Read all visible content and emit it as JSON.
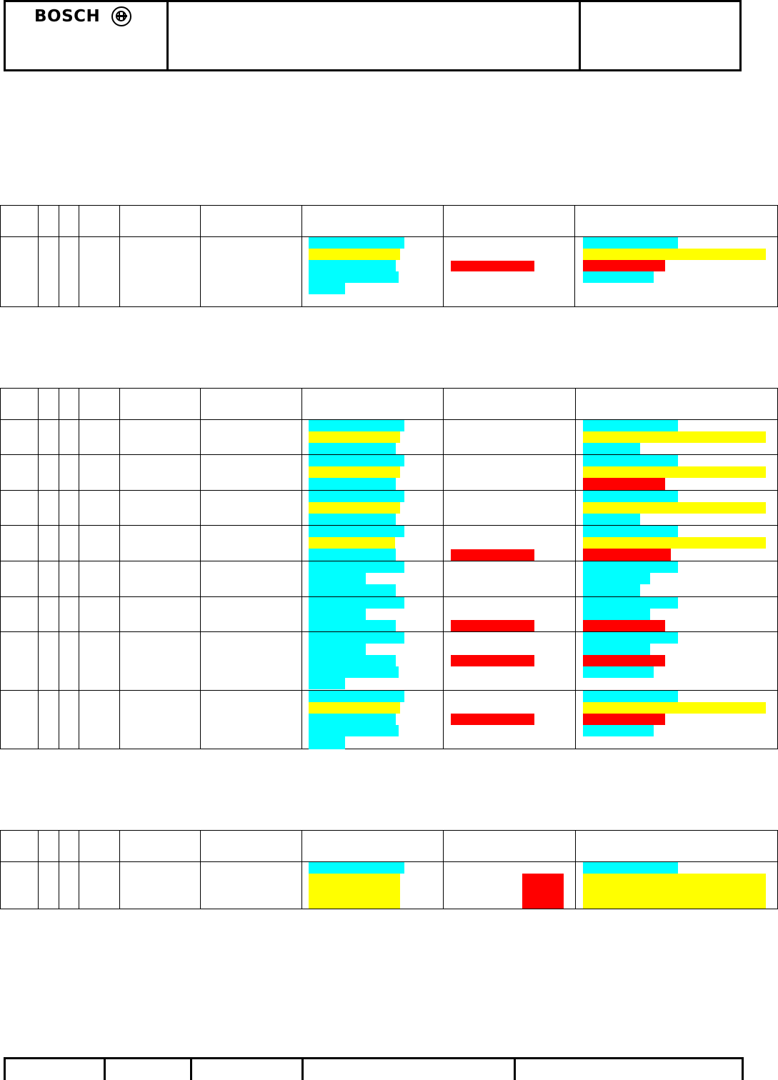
{
  "header": {
    "logo_text": "BOSCH",
    "logo_icon": "bosch-armature-icon"
  },
  "colors": {
    "cyan": "#00ffff",
    "yellow": "#ffff00",
    "red": "#ff0000",
    "line": "#000000"
  }
}
